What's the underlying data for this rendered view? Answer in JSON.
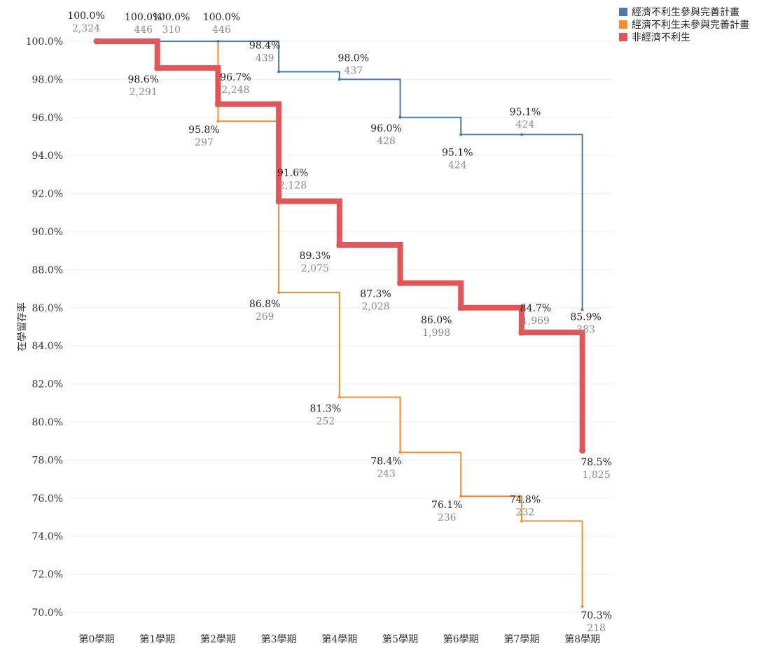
{
  "chart_data": {
    "type": "line",
    "step": true,
    "title": "",
    "xlabel": "",
    "ylabel": "在學留存率",
    "ylim": [
      69.5,
      100.3
    ],
    "yticks": [
      "70.0%",
      "72.0%",
      "74.0%",
      "76.0%",
      "78.0%",
      "80.0%",
      "82.0%",
      "84.0%",
      "86.0%",
      "88.0%",
      "90.0%",
      "92.0%",
      "94.0%",
      "96.0%",
      "98.0%",
      "100.0%"
    ],
    "categories": [
      "第0學期",
      "第1學期",
      "第2學期",
      "第3學期",
      "第4學期",
      "第5學期",
      "第6學期",
      "第7學期",
      "第8學期"
    ],
    "grid": true,
    "legend_position": "top-right",
    "series": [
      {
        "name": "經濟不利生參與完善計畫",
        "color": "#4e79a7",
        "width": 2,
        "values": [
          100.0,
          100.0,
          100.0,
          98.4,
          98.0,
          96.0,
          95.1,
          95.1,
          85.9
        ],
        "pct_labels": [
          "",
          "100.0%",
          "100.0%",
          "98.4%",
          "98.0%",
          "96.0%",
          "95.1%",
          "95.1%",
          "85.9%"
        ],
        "count_labels": [
          "",
          "446",
          "446",
          "439",
          "437",
          "428",
          "424",
          "424",
          "383"
        ]
      },
      {
        "name": "經濟不利生未參與完善計畫",
        "color": "#f28e2b",
        "width": 2,
        "values": [
          100.0,
          100.0,
          95.8,
          86.8,
          81.3,
          78.4,
          76.1,
          74.8,
          70.3
        ],
        "pct_labels": [
          "",
          "100.0%",
          "95.8%",
          "86.8%",
          "81.3%",
          "78.4%",
          "76.1%",
          "74.8%",
          "70.3%"
        ],
        "count_labels": [
          "",
          "310",
          "297",
          "269",
          "252",
          "243",
          "236",
          "232",
          "218"
        ]
      },
      {
        "name": "非經濟不利生",
        "color": "#e15759",
        "width": 8,
        "values": [
          100.0,
          98.6,
          96.7,
          91.6,
          89.3,
          87.3,
          86.0,
          84.7,
          78.5
        ],
        "pct_labels": [
          "100.0%",
          "98.6%",
          "96.7%",
          "91.6%",
          "89.3%",
          "87.3%",
          "86.0%",
          "84.7%",
          "78.5%"
        ],
        "count_labels": [
          "2,324",
          "2,291",
          "2,248",
          "2,128",
          "2,075",
          "2,028",
          "1,998",
          "1,969",
          "1,825"
        ]
      }
    ]
  }
}
